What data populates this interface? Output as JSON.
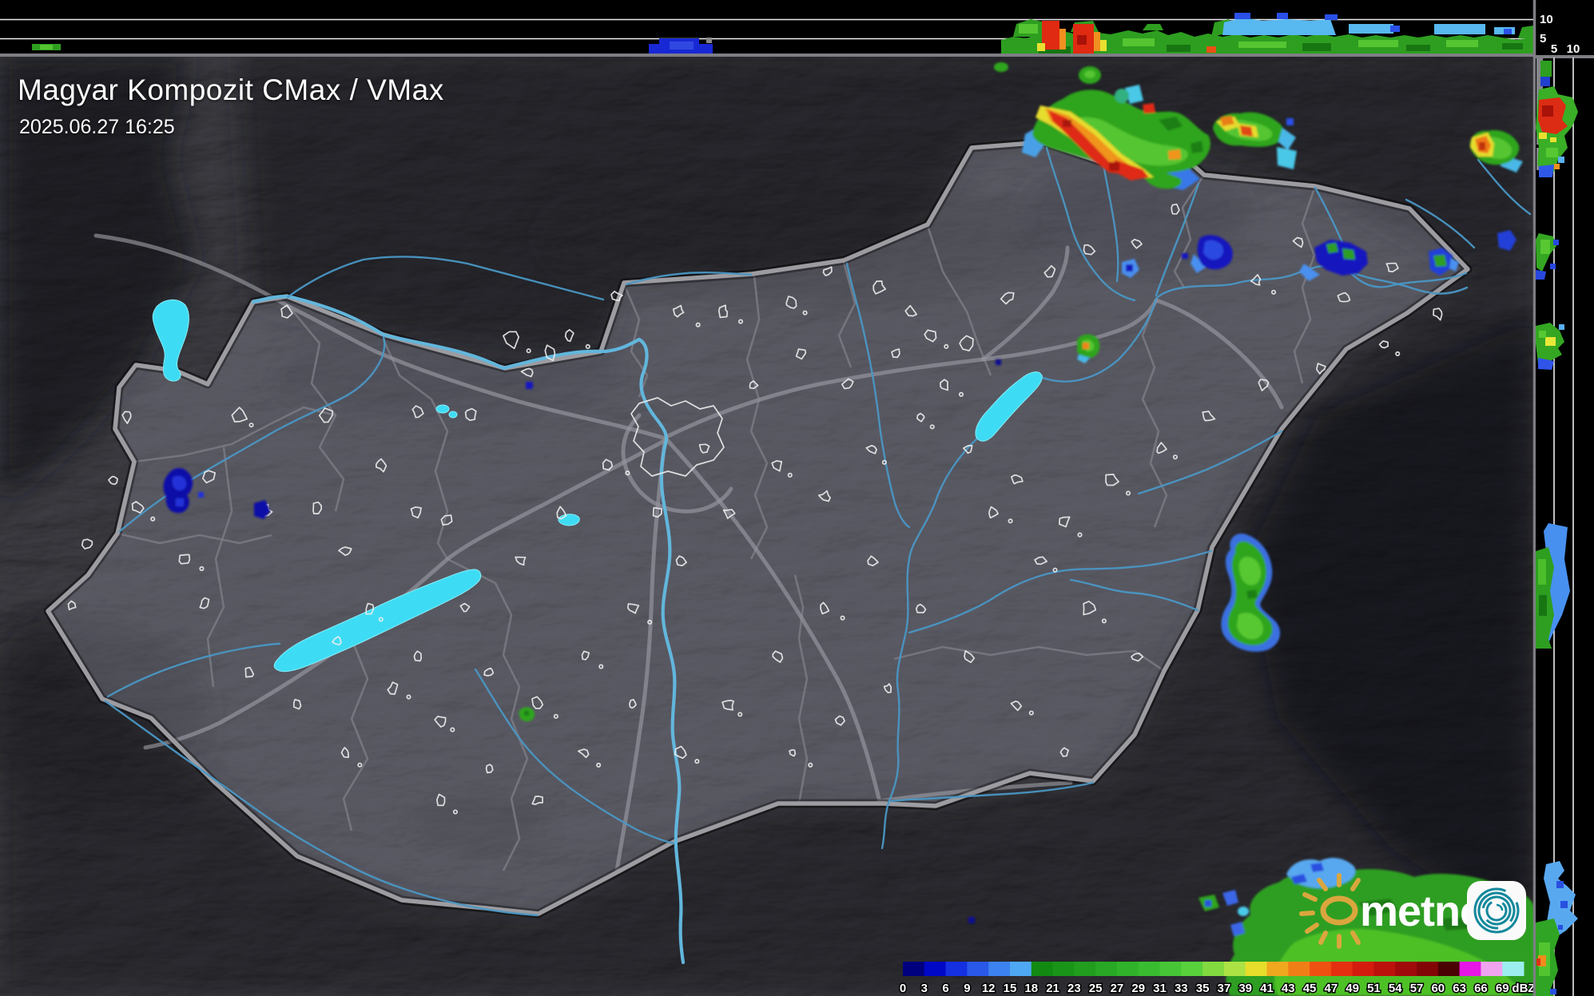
{
  "header": {
    "title": "Magyar Kompozit CMax / VMax",
    "timestamp": "2025.06.27 16:25"
  },
  "profiles": {
    "top": {
      "ticks": [
        {
          "label": "10"
        },
        {
          "label": "5"
        }
      ]
    },
    "right": {
      "ticks": [
        {
          "label": "5"
        },
        {
          "label": "10"
        }
      ]
    }
  },
  "legend": {
    "unit": "dBZ",
    "labels": [
      "0",
      "3",
      "6",
      "9",
      "12",
      "15",
      "18",
      "21",
      "23",
      "25",
      "27",
      "29",
      "31",
      "33",
      "35",
      "37",
      "39",
      "41",
      "43",
      "45",
      "47",
      "49",
      "51",
      "54",
      "57",
      "60",
      "63",
      "66",
      "69",
      "dBZ"
    ],
    "cell_colors": [
      "#00007E",
      "#0008C8",
      "#1430E0",
      "#2A58E8",
      "#3C82F0",
      "#4EA8F4",
      "#128A12",
      "#1A9418",
      "#219E1E",
      "#28A824",
      "#30B22A",
      "#3ABC30",
      "#46C636",
      "#58D03C",
      "#82DA40",
      "#ACE244",
      "#E6DE2A",
      "#F0A81E",
      "#F07E16",
      "#EE5012",
      "#E43010",
      "#D41C0E",
      "#BC120C",
      "#A00A0A",
      "#820606",
      "#4A0202",
      "#E616E6",
      "#F0A4F0",
      "#9CEEEE"
    ]
  },
  "logo": {
    "brand": "metnet",
    "sun_color": "#daa63e",
    "swirl_color": "#12889c"
  }
}
